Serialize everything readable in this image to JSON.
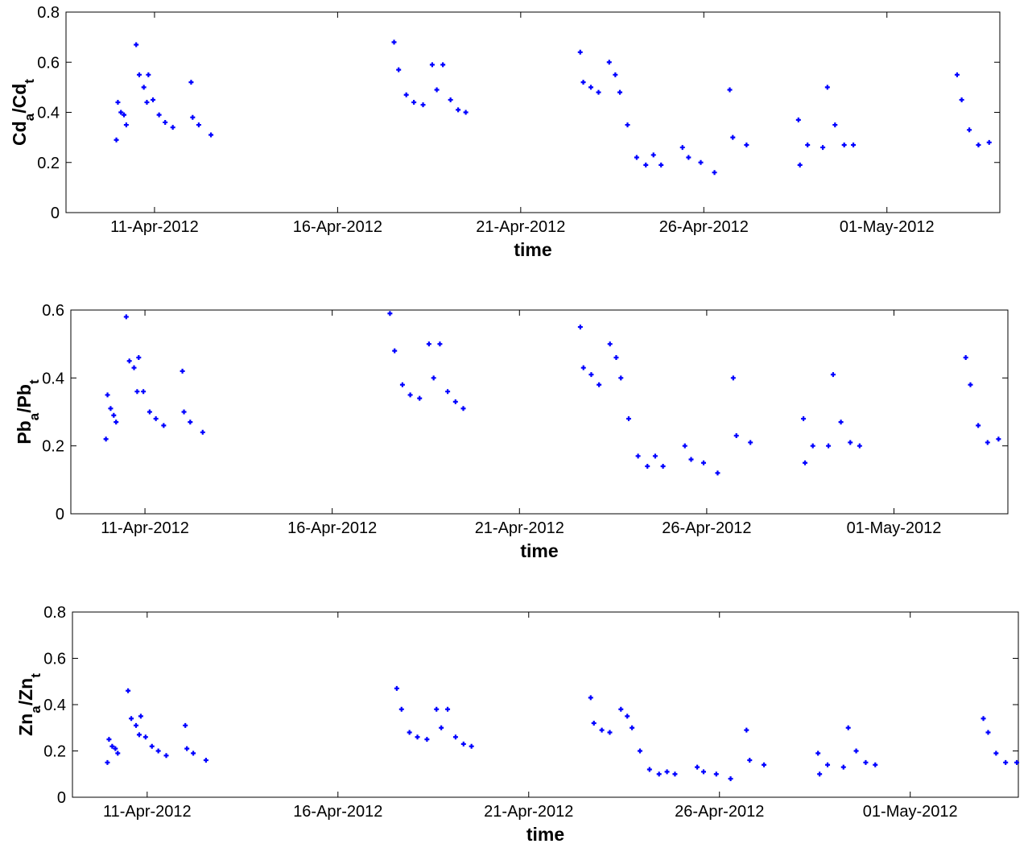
{
  "chart_data": [
    {
      "type": "scatter",
      "xlabel": "time",
      "ylabel": [
        "Cd",
        "a",
        "/Cd",
        "t"
      ],
      "xlim": [
        "2012-04-08 14:00",
        "2012-05-04 02:00"
      ],
      "xticks": [
        {
          "value": "2012-04-11",
          "label": "11-Apr-2012"
        },
        {
          "value": "2012-04-16",
          "label": "16-Apr-2012"
        },
        {
          "value": "2012-04-21",
          "label": "21-Apr-2012"
        },
        {
          "value": "2012-04-26",
          "label": "26-Apr-2012"
        },
        {
          "value": "2012-05-01",
          "label": "01-May-2012"
        }
      ],
      "ylim": [
        0,
        0.8
      ],
      "yticks": [
        0,
        0.2,
        0.4,
        0.6,
        0.8
      ],
      "color": "#0000ff",
      "x": [
        "2012-04-09 23:00",
        "2012-04-10 00:00",
        "2012-04-10 02:00",
        "2012-04-10 04:00",
        "2012-04-10 05:30",
        "2012-04-10 12:00",
        "2012-04-10 14:00",
        "2012-04-10 17:00",
        "2012-04-10 19:00",
        "2012-04-10 20:00",
        "2012-04-10 23:00",
        "2012-04-11 03:00",
        "2012-04-11 07:00",
        "2012-04-11 12:00",
        "2012-04-12 00:00",
        "2012-04-12 01:00",
        "2012-04-12 05:00",
        "2012-04-12 13:00",
        "2012-04-17 13:00",
        "2012-04-17 16:00",
        "2012-04-17 21:00",
        "2012-04-18 02:00",
        "2012-04-18 08:00",
        "2012-04-18 14:00",
        "2012-04-18 17:00",
        "2012-04-18 21:00",
        "2012-04-19 02:00",
        "2012-04-19 07:00",
        "2012-04-19 12:00",
        "2012-04-22 15:00",
        "2012-04-22 17:00",
        "2012-04-22 22:00",
        "2012-04-23 03:00",
        "2012-04-23 10:00",
        "2012-04-23 14:00",
        "2012-04-23 17:00",
        "2012-04-23 22:00",
        "2012-04-24 04:00",
        "2012-04-24 10:00",
        "2012-04-24 15:00",
        "2012-04-24 20:00",
        "2012-04-25 10:00",
        "2012-04-25 14:00",
        "2012-04-25 22:00",
        "2012-04-26 07:00",
        "2012-04-26 17:00",
        "2012-04-26 19:00",
        "2012-04-27 04:00",
        "2012-04-28 14:00",
        "2012-04-28 15:00",
        "2012-04-28 20:00",
        "2012-04-29 06:00",
        "2012-04-29 09:00",
        "2012-04-29 14:00",
        "2012-04-29 20:00",
        "2012-04-30 02:00",
        "2012-05-02 22:00",
        "2012-05-03 01:00",
        "2012-05-03 06:00",
        "2012-05-03 12:00",
        "2012-05-03 19:00"
      ],
      "values": [
        0.29,
        0.44,
        0.4,
        0.39,
        0.35,
        0.67,
        0.55,
        0.5,
        0.44,
        0.55,
        0.45,
        0.39,
        0.36,
        0.34,
        0.52,
        0.38,
        0.35,
        0.31,
        0.68,
        0.57,
        0.47,
        0.44,
        0.43,
        0.59,
        0.49,
        0.59,
        0.45,
        0.41,
        0.4,
        0.64,
        0.52,
        0.5,
        0.48,
        0.6,
        0.55,
        0.48,
        0.35,
        0.22,
        0.19,
        0.23,
        0.19,
        0.26,
        0.22,
        0.2,
        0.16,
        0.49,
        0.3,
        0.27,
        0.37,
        0.19,
        0.27,
        0.26,
        0.5,
        0.35,
        0.27,
        0.27,
        0.55,
        0.45,
        0.33,
        0.27,
        0.28
      ]
    },
    {
      "type": "scatter",
      "xlabel": "time",
      "ylabel": [
        "Pb",
        "a",
        "/Pb",
        "t"
      ],
      "xlim": [
        "2012-04-09 00:30",
        "2012-05-04 01:00"
      ],
      "xticks": [
        {
          "value": "2012-04-11",
          "label": "11-Apr-2012"
        },
        {
          "value": "2012-04-16",
          "label": "16-Apr-2012"
        },
        {
          "value": "2012-04-21",
          "label": "21-Apr-2012"
        },
        {
          "value": "2012-04-26",
          "label": "26-Apr-2012"
        },
        {
          "value": "2012-05-01",
          "label": "01-May-2012"
        }
      ],
      "ylim": [
        0,
        0.6
      ],
      "yticks": [
        0,
        0.2,
        0.4,
        0.6
      ],
      "color": "#0000ff",
      "x": [
        "2012-04-09 23:00",
        "2012-04-10 00:00",
        "2012-04-10 02:00",
        "2012-04-10 04:00",
        "2012-04-10 05:30",
        "2012-04-10 12:00",
        "2012-04-10 14:00",
        "2012-04-10 17:00",
        "2012-04-10 19:00",
        "2012-04-10 20:00",
        "2012-04-10 23:00",
        "2012-04-11 03:00",
        "2012-04-11 07:00",
        "2012-04-11 12:00",
        "2012-04-12 00:00",
        "2012-04-12 01:00",
        "2012-04-12 05:00",
        "2012-04-12 13:00",
        "2012-04-17 13:00",
        "2012-04-17 16:00",
        "2012-04-17 21:00",
        "2012-04-18 02:00",
        "2012-04-18 08:00",
        "2012-04-18 14:00",
        "2012-04-18 17:00",
        "2012-04-18 21:00",
        "2012-04-19 02:00",
        "2012-04-19 07:00",
        "2012-04-19 12:00",
        "2012-04-22 15:00",
        "2012-04-22 17:00",
        "2012-04-22 22:00",
        "2012-04-23 03:00",
        "2012-04-23 10:00",
        "2012-04-23 14:00",
        "2012-04-23 17:00",
        "2012-04-23 22:00",
        "2012-04-24 04:00",
        "2012-04-24 10:00",
        "2012-04-24 15:00",
        "2012-04-24 20:00",
        "2012-04-25 10:00",
        "2012-04-25 14:00",
        "2012-04-25 22:00",
        "2012-04-26 07:00",
        "2012-04-26 17:00",
        "2012-04-26 19:00",
        "2012-04-27 04:00",
        "2012-04-28 14:00",
        "2012-04-28 15:00",
        "2012-04-28 20:00",
        "2012-04-29 06:00",
        "2012-04-29 09:00",
        "2012-04-29 14:00",
        "2012-04-29 20:00",
        "2012-04-30 02:00",
        "2012-05-02 22:00",
        "2012-05-03 01:00",
        "2012-05-03 06:00",
        "2012-05-03 12:00",
        "2012-05-03 19:00"
      ],
      "values": [
        0.22,
        0.35,
        0.31,
        0.29,
        0.27,
        0.58,
        0.45,
        0.43,
        0.36,
        0.46,
        0.36,
        0.3,
        0.28,
        0.26,
        0.42,
        0.3,
        0.27,
        0.24,
        0.59,
        0.48,
        0.38,
        0.35,
        0.34,
        0.5,
        0.4,
        0.5,
        0.36,
        0.33,
        0.31,
        0.55,
        0.43,
        0.41,
        0.38,
        0.5,
        0.46,
        0.4,
        0.28,
        0.17,
        0.14,
        0.17,
        0.14,
        0.2,
        0.16,
        0.15,
        0.12,
        0.4,
        0.23,
        0.21,
        0.28,
        0.15,
        0.2,
        0.2,
        0.41,
        0.27,
        0.21,
        0.2,
        0.46,
        0.38,
        0.26,
        0.21,
        0.22
      ]
    },
    {
      "type": "scatter",
      "xlabel": "time",
      "ylabel": [
        "Zn",
        "a",
        "/Zn",
        "t"
      ],
      "xlim": [
        "2012-04-09 01:00",
        "2012-05-03 20:00"
      ],
      "xticks": [
        {
          "value": "2012-04-11",
          "label": "11-Apr-2012"
        },
        {
          "value": "2012-04-16",
          "label": "16-Apr-2012"
        },
        {
          "value": "2012-04-21",
          "label": "21-Apr-2012"
        },
        {
          "value": "2012-04-26",
          "label": "26-Apr-2012"
        },
        {
          "value": "2012-05-01",
          "label": "01-May-2012"
        }
      ],
      "ylim": [
        0,
        0.8
      ],
      "yticks": [
        0,
        0.2,
        0.4,
        0.6,
        0.8
      ],
      "color": "#0000ff",
      "x": [
        "2012-04-09 23:00",
        "2012-04-10 00:00",
        "2012-04-10 02:00",
        "2012-04-10 04:00",
        "2012-04-10 05:30",
        "2012-04-10 12:00",
        "2012-04-10 14:00",
        "2012-04-10 17:00",
        "2012-04-10 19:00",
        "2012-04-10 20:00",
        "2012-04-10 23:00",
        "2012-04-11 03:00",
        "2012-04-11 07:00",
        "2012-04-11 12:00",
        "2012-04-12 00:00",
        "2012-04-12 01:00",
        "2012-04-12 05:00",
        "2012-04-12 13:00",
        "2012-04-17 13:00",
        "2012-04-17 16:00",
        "2012-04-17 21:00",
        "2012-04-18 02:00",
        "2012-04-18 08:00",
        "2012-04-18 14:00",
        "2012-04-18 17:00",
        "2012-04-18 21:00",
        "2012-04-19 02:00",
        "2012-04-19 07:00",
        "2012-04-19 12:00",
        "2012-04-22 15:00",
        "2012-04-22 17:00",
        "2012-04-22 22:00",
        "2012-04-23 03:00",
        "2012-04-23 10:00",
        "2012-04-23 14:00",
        "2012-04-23 17:00",
        "2012-04-23 22:00",
        "2012-04-24 04:00",
        "2012-04-24 10:00",
        "2012-04-24 15:00",
        "2012-04-24 20:00",
        "2012-04-25 10:00",
        "2012-04-25 14:00",
        "2012-04-25 22:00",
        "2012-04-26 07:00",
        "2012-04-26 17:00",
        "2012-04-26 19:00",
        "2012-04-27 04:00",
        "2012-04-28 14:00",
        "2012-04-28 15:00",
        "2012-04-28 20:00",
        "2012-04-29 06:00",
        "2012-04-29 09:00",
        "2012-04-29 14:00",
        "2012-04-29 20:00",
        "2012-04-30 02:00",
        "2012-05-02 22:00",
        "2012-05-03 01:00",
        "2012-05-03 06:00",
        "2012-05-03 12:00",
        "2012-05-03 19:00"
      ],
      "values": [
        0.15,
        0.25,
        0.22,
        0.21,
        0.19,
        0.46,
        0.34,
        0.31,
        0.27,
        0.35,
        0.26,
        0.22,
        0.2,
        0.18,
        0.31,
        0.21,
        0.19,
        0.16,
        0.47,
        0.38,
        0.28,
        0.26,
        0.25,
        0.38,
        0.3,
        0.38,
        0.26,
        0.23,
        0.22,
        0.43,
        0.32,
        0.29,
        0.28,
        0.38,
        0.35,
        0.3,
        0.2,
        0.12,
        0.1,
        0.11,
        0.1,
        0.13,
        0.11,
        0.1,
        0.08,
        0.29,
        0.16,
        0.14,
        0.19,
        0.1,
        0.14,
        0.13,
        0.3,
        0.2,
        0.15,
        0.14,
        0.34,
        0.28,
        0.19,
        0.15,
        0.15
      ]
    }
  ]
}
